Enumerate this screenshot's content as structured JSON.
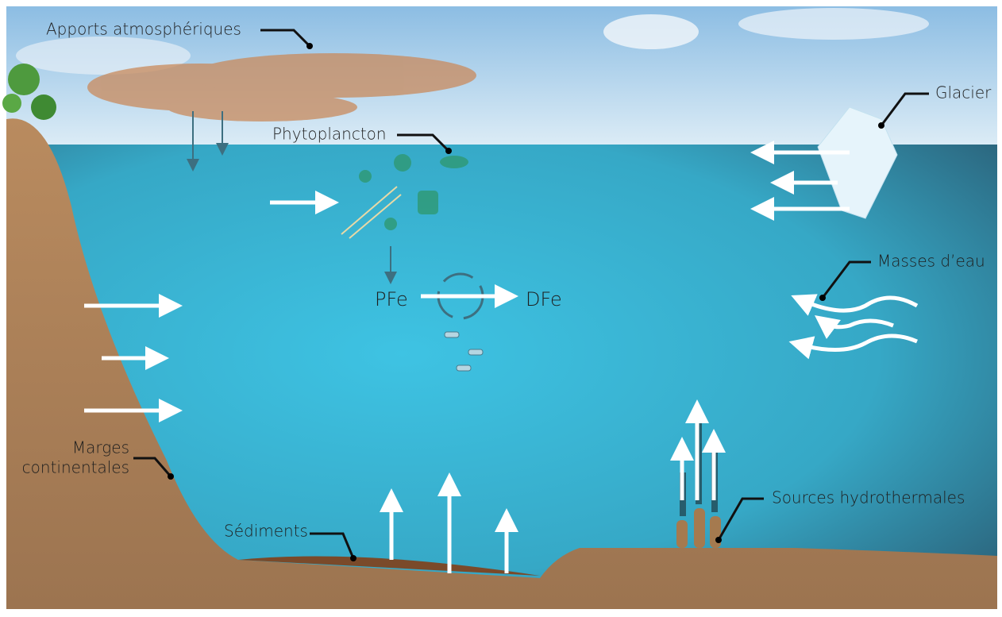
{
  "labels": {
    "atmospheric": "Apports atmosphériques",
    "glacier": "Glacier",
    "phytoplankton": "Phytoplancton",
    "pfe": "PFe",
    "dfe": "DFe",
    "water_masses": "Masses d’eau",
    "continental_margins": [
      "Marges",
      "continentales"
    ],
    "sediments": "Sédiments",
    "hydrothermal": "Sources hydrothermales"
  }
}
